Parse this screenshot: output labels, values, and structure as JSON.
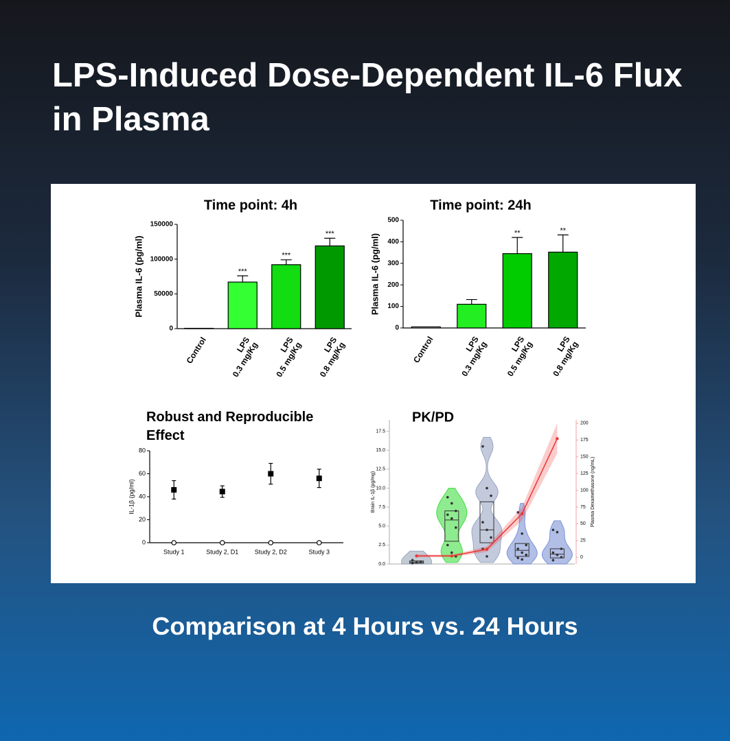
{
  "title": "LPS-Induced Dose-Dependent IL-6 Flux in Plasma",
  "footer": "Comparison at 4 Hours vs. 24 Hours",
  "chart_data": [
    {
      "type": "bar",
      "title": "Time point: 4h",
      "ylabel": "Plasma IL-6 (pg/ml)",
      "categories": [
        "Control",
        "LPS\n0.3 mg/Kg",
        "LPS\n0.5 mg/Kg",
        "LPS\n0.8 mg/Kg"
      ],
      "values": [
        500,
        67000,
        92000,
        119000
      ],
      "errors": [
        null,
        9000,
        7000,
        11000
      ],
      "annotations": [
        null,
        "***",
        "***",
        "***"
      ],
      "colors": [
        "#ffffff",
        "#33ff33",
        "#11dd11",
        "#009a00"
      ],
      "ylim": [
        0,
        150000
      ],
      "yticks": [
        0,
        50000,
        100000,
        150000
      ]
    },
    {
      "type": "bar",
      "title": "Time point: 24h",
      "ylabel": "Plasma IL-6 (pg/ml)",
      "categories": [
        "Control",
        "LPS\n0.3 mg/Kg",
        "LPS\n0.5 mg/Kg",
        "LPS\n0.8 mg/Kg"
      ],
      "values": [
        5,
        110,
        345,
        352
      ],
      "errors": [
        null,
        22,
        75,
        80
      ],
      "annotations": [
        null,
        null,
        "**",
        "**"
      ],
      "colors": [
        "#ffffff",
        "#22ee22",
        "#00cc00",
        "#00a800"
      ],
      "ylim": [
        0,
        500
      ],
      "yticks": [
        0,
        100,
        200,
        300,
        400,
        500
      ]
    },
    {
      "type": "scatter",
      "title": "Robust and Reproducible\nEffect",
      "ylabel": "IL-1β (pg/ml)",
      "categories": [
        "Study 1",
        "Study 2, D1",
        "Study 2, D2",
        "Study 3"
      ],
      "series": [
        {
          "color": "#000000",
          "marker": "square",
          "values": [
            46,
            44.5,
            60,
            56
          ],
          "errors": [
            8,
            5,
            9,
            8
          ]
        },
        {
          "color": "#000000",
          "marker": "open-circle",
          "values": [
            0,
            0,
            0,
            0
          ]
        }
      ],
      "ylim": [
        0,
        80
      ],
      "yticks": [
        0,
        20,
        40,
        60,
        80
      ]
    },
    {
      "type": "violin",
      "title": "PK/PD",
      "ylabel": "Brain IL-1β (pg/mg)",
      "y2label": "Plasma Dexamethasone (ng/mL)",
      "categories": [
        null,
        null,
        null,
        null,
        null
      ],
      "groups": [
        {
          "color": "#9aa6b8",
          "q1": 0.1,
          "median": 0.25,
          "q3": 0.4,
          "points": [
            0.1,
            0.2,
            0.3,
            0.5
          ]
        },
        {
          "color": "#44dd44",
          "q1": 3.0,
          "median": 5.8,
          "q3": 7.0,
          "points": [
            8.8,
            8.0,
            7.0,
            6.5,
            6.0,
            4.8,
            2.5,
            1.5,
            1.0
          ]
        },
        {
          "color": "#9aa6c4",
          "q1": 2.8,
          "median": 4.5,
          "q3": 8.2,
          "points": [
            15.5,
            10.0,
            9.0,
            5.5,
            4.5,
            3.5,
            2.0,
            1.0
          ]
        },
        {
          "color": "#7d93d6",
          "q1": 1.0,
          "median": 1.8,
          "q3": 2.7,
          "points": [
            6.8,
            4.0,
            2.5,
            2.0,
            1.5,
            1.2,
            0.8,
            0.6
          ]
        },
        {
          "color": "#7d93d6",
          "q1": 0.8,
          "median": 1.3,
          "q3": 2.0,
          "points": [
            4.5,
            4.2,
            2.0,
            1.5,
            1.2,
            0.9,
            0.5
          ]
        }
      ],
      "series": [
        {
          "axis": "y2",
          "color": "#ee3333",
          "values": [
            2,
            2,
            12,
            65,
            177
          ],
          "lower": [
            0,
            0,
            8,
            55,
            155
          ],
          "upper": [
            4,
            4,
            16,
            75,
            200
          ]
        }
      ],
      "ylim": [
        0,
        19
      ],
      "yticks": [
        {
          "value": 0,
          "label": "0.0"
        },
        2.5,
        {
          "value": 5,
          "label": "5.0"
        },
        7.5,
        {
          "value": 10,
          "label": "10.0"
        },
        12.5,
        {
          "value": 15,
          "label": "15.0"
        },
        17.5
      ],
      "y2lim": [
        -10,
        205
      ],
      "y2ticks": [
        0,
        25,
        50,
        75,
        100,
        125,
        150,
        175,
        200
      ]
    }
  ]
}
